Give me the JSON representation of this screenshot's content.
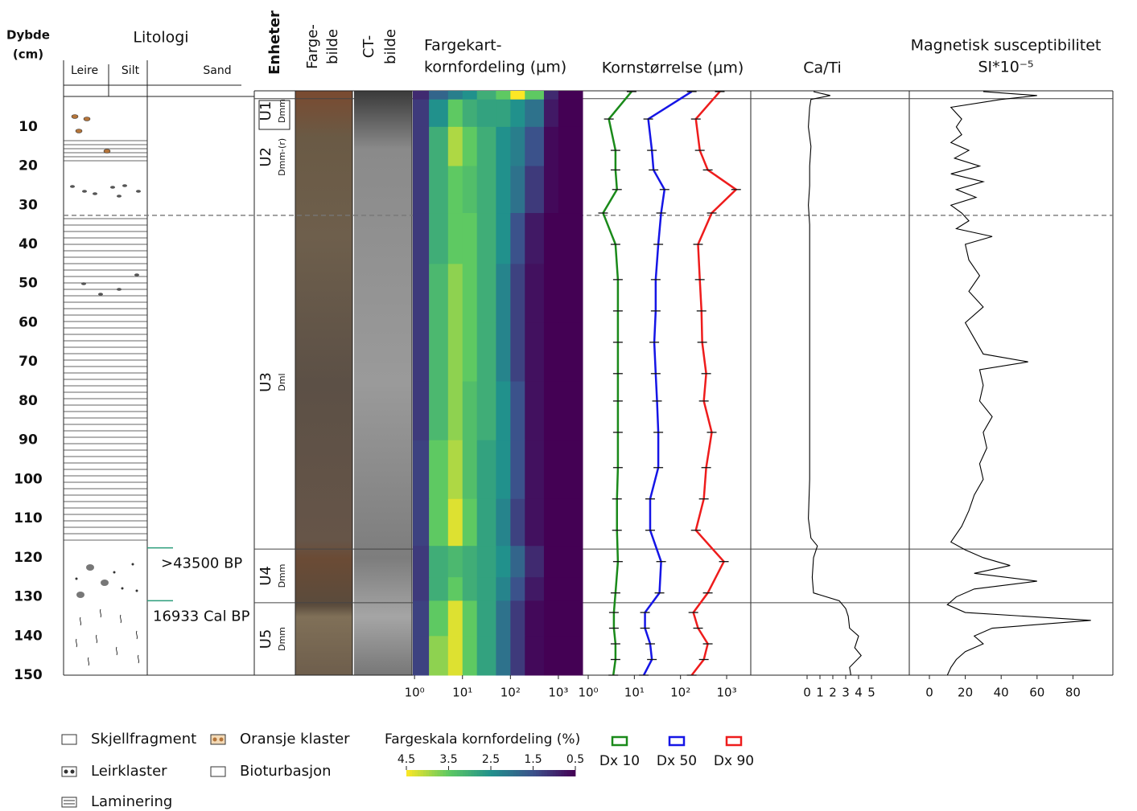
{
  "header": {
    "depth": [
      "Dybde",
      "(cm)"
    ],
    "lithology": "Litologi",
    "lithology_columns": [
      "Leire",
      "Silt",
      "Sand"
    ],
    "units": "Enheter",
    "color_image": [
      "Farge-",
      "bilde"
    ],
    "ct_image": [
      "CT-",
      "bilde"
    ]
  },
  "depth_axis": {
    "lim": [
      0.8,
      150
    ],
    "ticks": [
      10,
      20,
      30,
      40,
      50,
      60,
      70,
      80,
      90,
      100,
      110,
      120,
      130,
      140,
      150
    ]
  },
  "units": [
    {
      "name": "U1",
      "code": "Dmm",
      "top": 0.8,
      "bottom": 2.8,
      "lower_boundary": "solid"
    },
    {
      "name": "U2",
      "code": "Dmm-(r)",
      "top": 2.8,
      "bottom": 32.6,
      "lower_boundary": "dashed"
    },
    {
      "name": "U3",
      "code": "Dml",
      "top": 32.6,
      "bottom": 117.8,
      "lower_boundary": "solid"
    },
    {
      "name": "U4",
      "code": "Dmm",
      "top": 117.8,
      "bottom": 131.5,
      "lower_boundary": "solid"
    },
    {
      "name": "U5",
      "code": "Dmm",
      "top": 131.5,
      "bottom": 150
    }
  ],
  "dates": [
    {
      "label": ">43500 BP",
      "depth": 117.5
    },
    {
      "label": "16933 Cal BP",
      "depth": 131
    }
  ],
  "lithology_legend": [
    "Skjellfragment",
    "Oransje klaster",
    "Leirklaster",
    "Bioturbasjon",
    "Laminering"
  ],
  "chart_data": [
    {
      "type": "heatmap",
      "title": [
        "Fargekart-",
        "kornfordeling (μm)"
      ],
      "xscale": "log",
      "xlim": [
        0.92,
        3200
      ],
      "xticks": [
        {
          "value": 1,
          "label": "10⁰"
        },
        {
          "value": 10,
          "label": "10¹"
        },
        {
          "value": 100,
          "label": "10²"
        },
        {
          "value": 1000,
          "label": "10³"
        }
      ],
      "x_edges": [
        0.92,
        2,
        5,
        10,
        20,
        50,
        100,
        200,
        500,
        1000,
        3200
      ],
      "depth_edges": [
        0.8,
        3,
        10,
        20,
        32,
        45,
        60,
        75,
        90,
        105,
        117,
        125,
        131,
        140,
        150
      ],
      "values": [
        [
          1.0,
          1.8,
          2.2,
          2.5,
          3.0,
          3.5,
          4.5,
          3.5,
          1.0,
          0.5
        ],
        [
          1.2,
          2.5,
          3.5,
          3.0,
          2.8,
          2.8,
          2.5,
          2.0,
          0.8,
          0.5
        ],
        [
          1.2,
          3.0,
          4.0,
          3.5,
          3.0,
          2.5,
          2.2,
          1.5,
          0.6,
          0.5
        ],
        [
          1.2,
          3.0,
          3.5,
          3.3,
          3.0,
          2.5,
          2.0,
          1.2,
          0.6,
          0.5
        ],
        [
          1.2,
          3.0,
          3.5,
          3.5,
          3.0,
          2.5,
          1.5,
          0.8,
          0.5,
          0.5
        ],
        [
          1.2,
          3.2,
          3.8,
          3.5,
          3.0,
          2.3,
          1.3,
          0.7,
          0.5,
          0.5
        ],
        [
          1.2,
          3.2,
          3.8,
          3.5,
          3.0,
          2.3,
          1.3,
          0.7,
          0.5,
          0.5
        ],
        [
          1.2,
          3.2,
          3.8,
          3.3,
          3.0,
          2.5,
          1.5,
          0.7,
          0.5,
          0.5
        ],
        [
          1.3,
          3.5,
          4.0,
          3.3,
          2.8,
          2.5,
          1.5,
          0.7,
          0.5,
          0.5
        ],
        [
          1.3,
          3.5,
          4.3,
          3.5,
          2.8,
          2.3,
          1.3,
          0.7,
          0.5,
          0.5
        ],
        [
          1.2,
          3.0,
          3.2,
          3.0,
          2.8,
          2.5,
          1.8,
          1.0,
          0.5,
          0.5
        ],
        [
          1.2,
          3.0,
          3.5,
          3.0,
          2.8,
          2.3,
          1.5,
          0.8,
          0.5,
          0.5
        ],
        [
          1.3,
          3.5,
          4.3,
          3.5,
          2.8,
          2.0,
          1.2,
          0.6,
          0.5,
          0.5
        ],
        [
          1.3,
          3.8,
          4.3,
          3.5,
          2.8,
          2.0,
          1.2,
          0.6,
          0.5,
          0.5
        ]
      ],
      "colorscale": {
        "title": "Fargeskala kornfordeling (%)",
        "lim": [
          4.5,
          0.5
        ],
        "ticks": [
          4.5,
          3.5,
          2.5,
          1.5,
          0.5
        ],
        "colors": [
          "#fde725",
          "#5ec962",
          "#21918c",
          "#3b528b",
          "#440154"
        ]
      }
    },
    {
      "type": "line",
      "title": "Kornstørrelse (μm)",
      "xscale": "log",
      "xlim": [
        0.755,
        3330
      ],
      "xticks": [
        {
          "value": 1,
          "label": "10⁰"
        },
        {
          "value": 10,
          "label": "10¹"
        },
        {
          "value": 100,
          "label": "10²"
        },
        {
          "value": 1000,
          "label": "10³"
        }
      ],
      "depths": [
        1,
        8,
        16,
        21,
        26,
        32,
        40,
        49,
        57,
        65,
        73,
        80,
        88,
        97,
        105,
        113,
        121,
        129,
        134,
        138,
        142,
        146,
        150
      ],
      "series": [
        {
          "name": "Dx 10",
          "color": "#1a8a1a",
          "values": [
            8.7,
            2.8,
            3.9,
            3.9,
            4.2,
            2.1,
            3.9,
            4.4,
            4.4,
            4.4,
            4.4,
            4.4,
            4.4,
            4.4,
            4.2,
            4.2,
            4.4,
            3.9,
            3.6,
            3.6,
            3.9,
            3.9,
            3.5
          ]
        },
        {
          "name": "Dx 50",
          "color": "#1515e6",
          "values": [
            175,
            20,
            24,
            26,
            45,
            38,
            33,
            29,
            29,
            27,
            29,
            31,
            33,
            33,
            22,
            22,
            38,
            35,
            17,
            17,
            22,
            24,
            16
          ]
        },
        {
          "name": "Dx 90",
          "color": "#ee1c1c",
          "values": [
            710,
            215,
            262,
            390,
            1600,
            475,
            240,
            262,
            285,
            295,
            360,
            320,
            475,
            360,
            320,
            215,
            870,
            390,
            190,
            240,
            390,
            320,
            175
          ]
        }
      ]
    },
    {
      "type": "line",
      "title": "Ca/Ti",
      "xscale": "linear",
      "xlim": [
        0,
        8
      ],
      "xticks": [
        0,
        1,
        2,
        3,
        4,
        5
      ],
      "depths": [
        1,
        2,
        3,
        5,
        10,
        15,
        20,
        25,
        30,
        35,
        40,
        50,
        60,
        70,
        80,
        90,
        100,
        110,
        115,
        117,
        120,
        125,
        129,
        131,
        133,
        135,
        138,
        140,
        143,
        145,
        148,
        150
      ],
      "series": [
        {
          "color": "#000000",
          "values": [
            0.5,
            1.8,
            0.3,
            0.2,
            0.1,
            0.3,
            0.2,
            0.2,
            0.1,
            0.2,
            0.2,
            0.2,
            0.2,
            0.2,
            0.2,
            0.2,
            0.2,
            0.1,
            0.3,
            0.8,
            0.5,
            0.4,
            0.5,
            2.5,
            3.0,
            3.2,
            3.3,
            4.0,
            3.7,
            4.2,
            3.3,
            3.4
          ]
        }
      ]
    },
    {
      "type": "line",
      "title": [
        "Magnetisk susceptibilitet",
        "SI*10⁻⁵"
      ],
      "xscale": "linear",
      "xlim": [
        0,
        100
      ],
      "xticks": [
        0,
        20,
        40,
        60,
        80
      ],
      "depths": [
        1,
        2,
        3,
        5,
        8,
        10,
        12,
        14,
        16,
        18,
        20,
        22,
        24,
        26,
        28,
        30,
        32,
        34,
        36,
        38,
        40,
        44,
        48,
        52,
        56,
        60,
        64,
        68,
        70,
        72,
        76,
        80,
        84,
        88,
        92,
        96,
        100,
        104,
        108,
        112,
        116,
        118,
        120,
        122,
        124,
        126,
        128,
        130,
        132,
        134,
        136,
        138,
        140,
        142,
        144,
        146,
        148,
        150
      ],
      "series": [
        {
          "color": "#000000",
          "values": [
            30,
            60,
            40,
            12,
            18,
            15,
            18,
            12,
            22,
            14,
            28,
            12,
            30,
            15,
            26,
            12,
            18,
            22,
            15,
            35,
            20,
            22,
            28,
            22,
            30,
            20,
            25,
            30,
            55,
            28,
            30,
            28,
            35,
            30,
            32,
            28,
            30,
            25,
            22,
            18,
            12,
            20,
            30,
            45,
            25,
            60,
            25,
            15,
            10,
            20,
            90,
            35,
            25,
            30,
            20,
            15,
            12,
            10
          ]
        }
      ]
    }
  ]
}
